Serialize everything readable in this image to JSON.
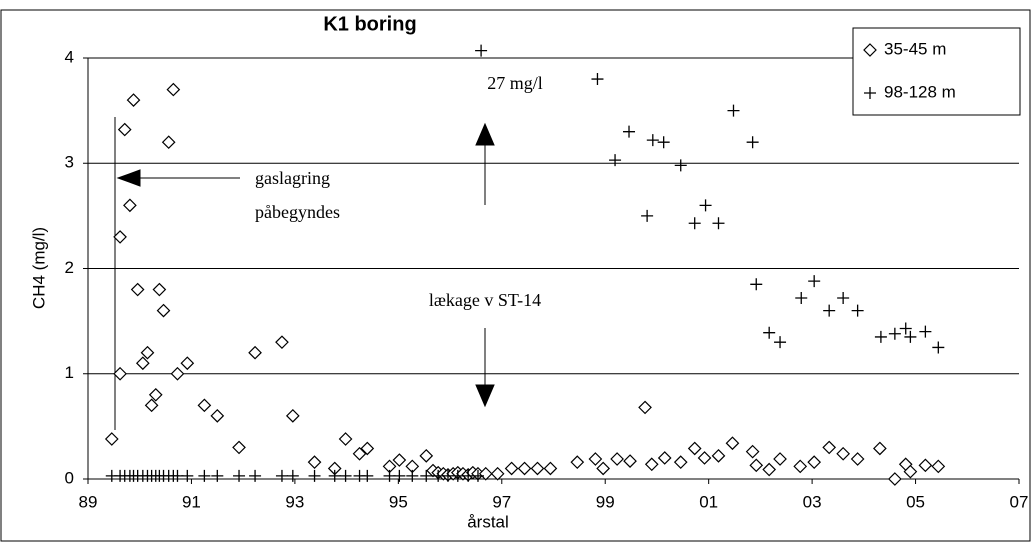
{
  "chart_data": {
    "type": "scatter",
    "title": "K1 boring",
    "x_label": "årstal",
    "y_label": "CH4 (mg/l)",
    "xlim": [
      1989,
      2007
    ],
    "ylim": [
      0,
      4
    ],
    "xticks": [
      {
        "value": 1989,
        "label": "89"
      },
      {
        "value": 1991,
        "label": "91"
      },
      {
        "value": 1993,
        "label": "93"
      },
      {
        "value": 1995,
        "label": "95"
      },
      {
        "value": 1997,
        "label": "97"
      },
      {
        "value": 1999,
        "label": "99"
      },
      {
        "value": 2001,
        "label": "01"
      },
      {
        "value": 2003,
        "label": "03"
      },
      {
        "value": 2005,
        "label": "05"
      },
      {
        "value": 2007,
        "label": "07"
      }
    ],
    "yticks": [
      0,
      1,
      2,
      3,
      4
    ],
    "grid": true,
    "legend": "top-right",
    "annotations": [
      "27 mg/l",
      "gaslagring",
      "påbegyndes",
      "lækage v ST-14"
    ],
    "series": [
      {
        "name": "35-45 m",
        "color": "#000000",
        "marker": "diamond",
        "x": [
          1989.46,
          1989.62,
          1989.62,
          1989.71,
          1989.81,
          1989.88,
          1989.96,
          1990.06,
          1990.15,
          1990.23,
          1990.31,
          1990.38,
          1990.46,
          1990.56,
          1990.65,
          1990.73,
          1990.92,
          1991.25,
          1991.5,
          1991.92,
          1992.23,
          1992.75,
          1992.96,
          1993.38,
          1993.77,
          1993.98,
          1994.25,
          1994.4,
          1994.83,
          1995.02,
          1995.27,
          1995.54,
          1995.67,
          1995.77,
          1995.87,
          1995.96,
          1996.06,
          1996.15,
          1996.25,
          1996.35,
          1996.44,
          1996.54,
          1996.69,
          1996.92,
          1997.19,
          1997.44,
          1997.69,
          1997.94,
          1998.46,
          1998.81,
          1998.96,
          1999.23,
          1999.48,
          1999.77,
          1999.9,
          2000.15,
          2000.46,
          2000.73,
          2000.92,
          2001.19,
          2001.46,
          2001.85,
          2001.92,
          2002.17,
          2002.38,
          2002.77,
          2003.04,
          2003.33,
          2003.6,
          2003.88,
          2004.31,
          2004.6,
          2004.81,
          2004.9,
          2005.19,
          2005.44
        ],
        "values": [
          0.38,
          2.3,
          1.0,
          3.32,
          2.6,
          3.6,
          1.8,
          1.1,
          1.2,
          0.7,
          0.8,
          1.8,
          1.6,
          3.2,
          3.7,
          1.0,
          1.1,
          0.7,
          0.6,
          0.3,
          1.2,
          1.3,
          0.6,
          0.16,
          0.1,
          0.38,
          0.24,
          0.29,
          0.12,
          0.18,
          0.12,
          0.22,
          0.08,
          0.06,
          0.05,
          0.04,
          0.05,
          0.06,
          0.05,
          0.04,
          0.06,
          0.05,
          0.05,
          0.05,
          0.1,
          0.1,
          0.1,
          0.1,
          0.16,
          0.19,
          0.1,
          0.19,
          0.17,
          0.68,
          0.14,
          0.2,
          0.16,
          0.29,
          0.2,
          0.22,
          0.34,
          0.26,
          0.13,
          0.09,
          0.19,
          0.12,
          0.16,
          0.3,
          0.24,
          0.19,
          0.29,
          0.0,
          0.14,
          0.07,
          0.13,
          0.12
        ]
      },
      {
        "name": "98-128 m",
        "color": "#000000",
        "marker": "plus",
        "x": [
          1989.46,
          1989.62,
          1989.71,
          1989.81,
          1989.88,
          1989.96,
          1990.06,
          1990.15,
          1990.23,
          1990.31,
          1990.38,
          1990.46,
          1990.56,
          1990.65,
          1990.73,
          1990.92,
          1991.25,
          1991.5,
          1991.92,
          1992.23,
          1992.75,
          1992.96,
          1993.38,
          1993.77,
          1993.98,
          1994.25,
          1994.4,
          1994.83,
          1995.02,
          1995.27,
          1995.54,
          1995.77,
          1995.96,
          1996.15,
          1996.35,
          1996.54,
          1996.6,
          1998.85,
          1999.19,
          1999.46,
          1999.81,
          1999.92,
          2000.13,
          2000.46,
          2000.73,
          2000.94,
          2001.19,
          2001.48,
          2001.85,
          2001.92,
          2002.17,
          2002.38,
          2002.79,
          2003.04,
          2003.33,
          2003.6,
          2003.88,
          2004.33,
          2004.6,
          2004.81,
          2004.9,
          2005.19,
          2005.44
        ],
        "values": [
          0.03,
          0.03,
          0.03,
          0.03,
          0.03,
          0.03,
          0.03,
          0.03,
          0.03,
          0.03,
          0.03,
          0.03,
          0.03,
          0.03,
          0.03,
          0.03,
          0.03,
          0.03,
          0.03,
          0.03,
          0.03,
          0.03,
          0.03,
          0.03,
          0.03,
          0.03,
          0.03,
          0.03,
          0.03,
          0.03,
          0.03,
          0.03,
          0.03,
          0.03,
          0.03,
          0.03,
          4.07,
          3.8,
          3.03,
          3.3,
          2.5,
          3.22,
          3.2,
          2.98,
          2.43,
          2.6,
          2.43,
          3.5,
          3.2,
          1.85,
          1.39,
          1.3,
          1.72,
          1.88,
          1.6,
          1.72,
          1.6,
          1.35,
          1.38,
          1.43,
          1.35,
          1.4,
          1.25
        ]
      }
    ]
  }
}
